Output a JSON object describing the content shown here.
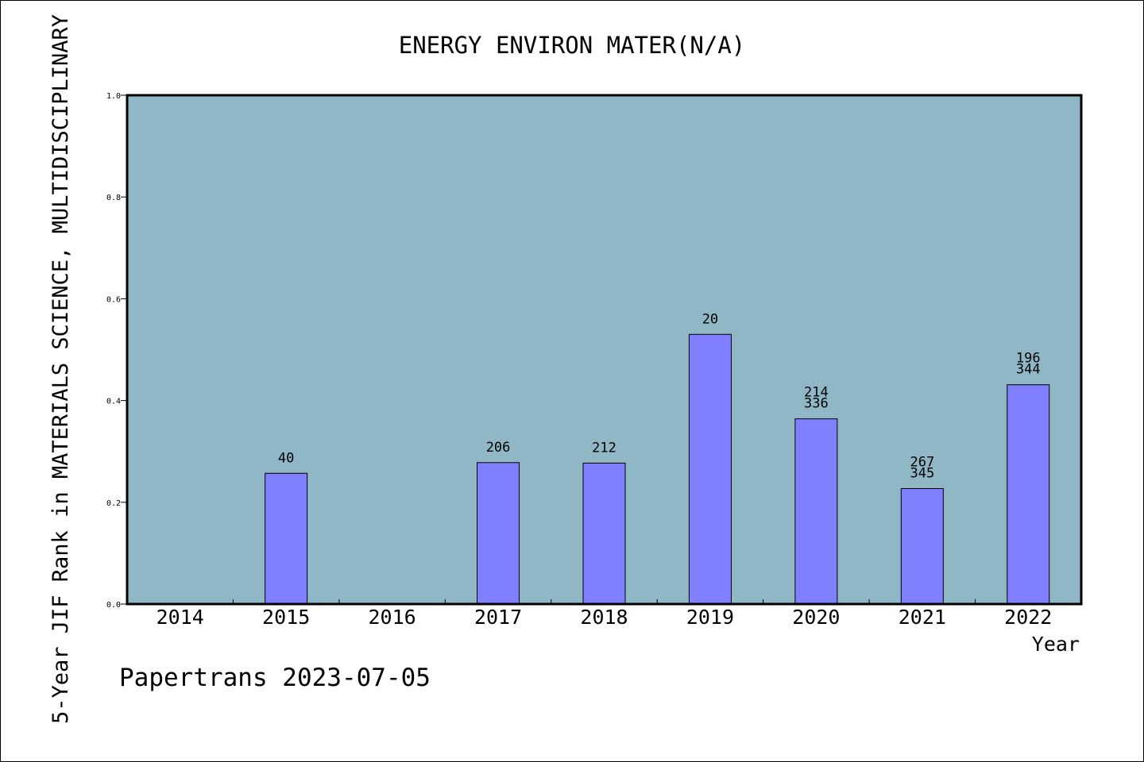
{
  "chart_data": {
    "type": "bar",
    "title": "ENERGY ENVIRON MATER(N/A)",
    "ylabel": "5-Year JIF Rank in MATERIALS SCIENCE, MULTIDISCIPLINARY",
    "xlabel": "Year",
    "categories": [
      "2014",
      "2015",
      "2016",
      "2017",
      "2018",
      "2019",
      "2020",
      "2021",
      "2022"
    ],
    "values": [
      null,
      0.257,
      null,
      0.278,
      0.277,
      0.53,
      0.364,
      0.227,
      0.431
    ],
    "bar_labels": [
      [],
      [
        "40"
      ],
      [],
      [
        "206"
      ],
      [
        "212"
      ],
      [
        "20"
      ],
      [
        "214",
        "336"
      ],
      [
        "267",
        "345"
      ],
      [
        "196",
        "344"
      ]
    ],
    "ylim": [
      0,
      1.0
    ],
    "yticks": [
      "0.0",
      "0.2",
      "0.4",
      "0.6",
      "0.8",
      "1.0"
    ],
    "grid": false,
    "legend": "none",
    "colors": {
      "plot_background": "#8fb7c6",
      "bar_fill": "#8080ff",
      "bar_stroke": "#000000"
    }
  },
  "footer": "Papertrans 2023-07-05"
}
